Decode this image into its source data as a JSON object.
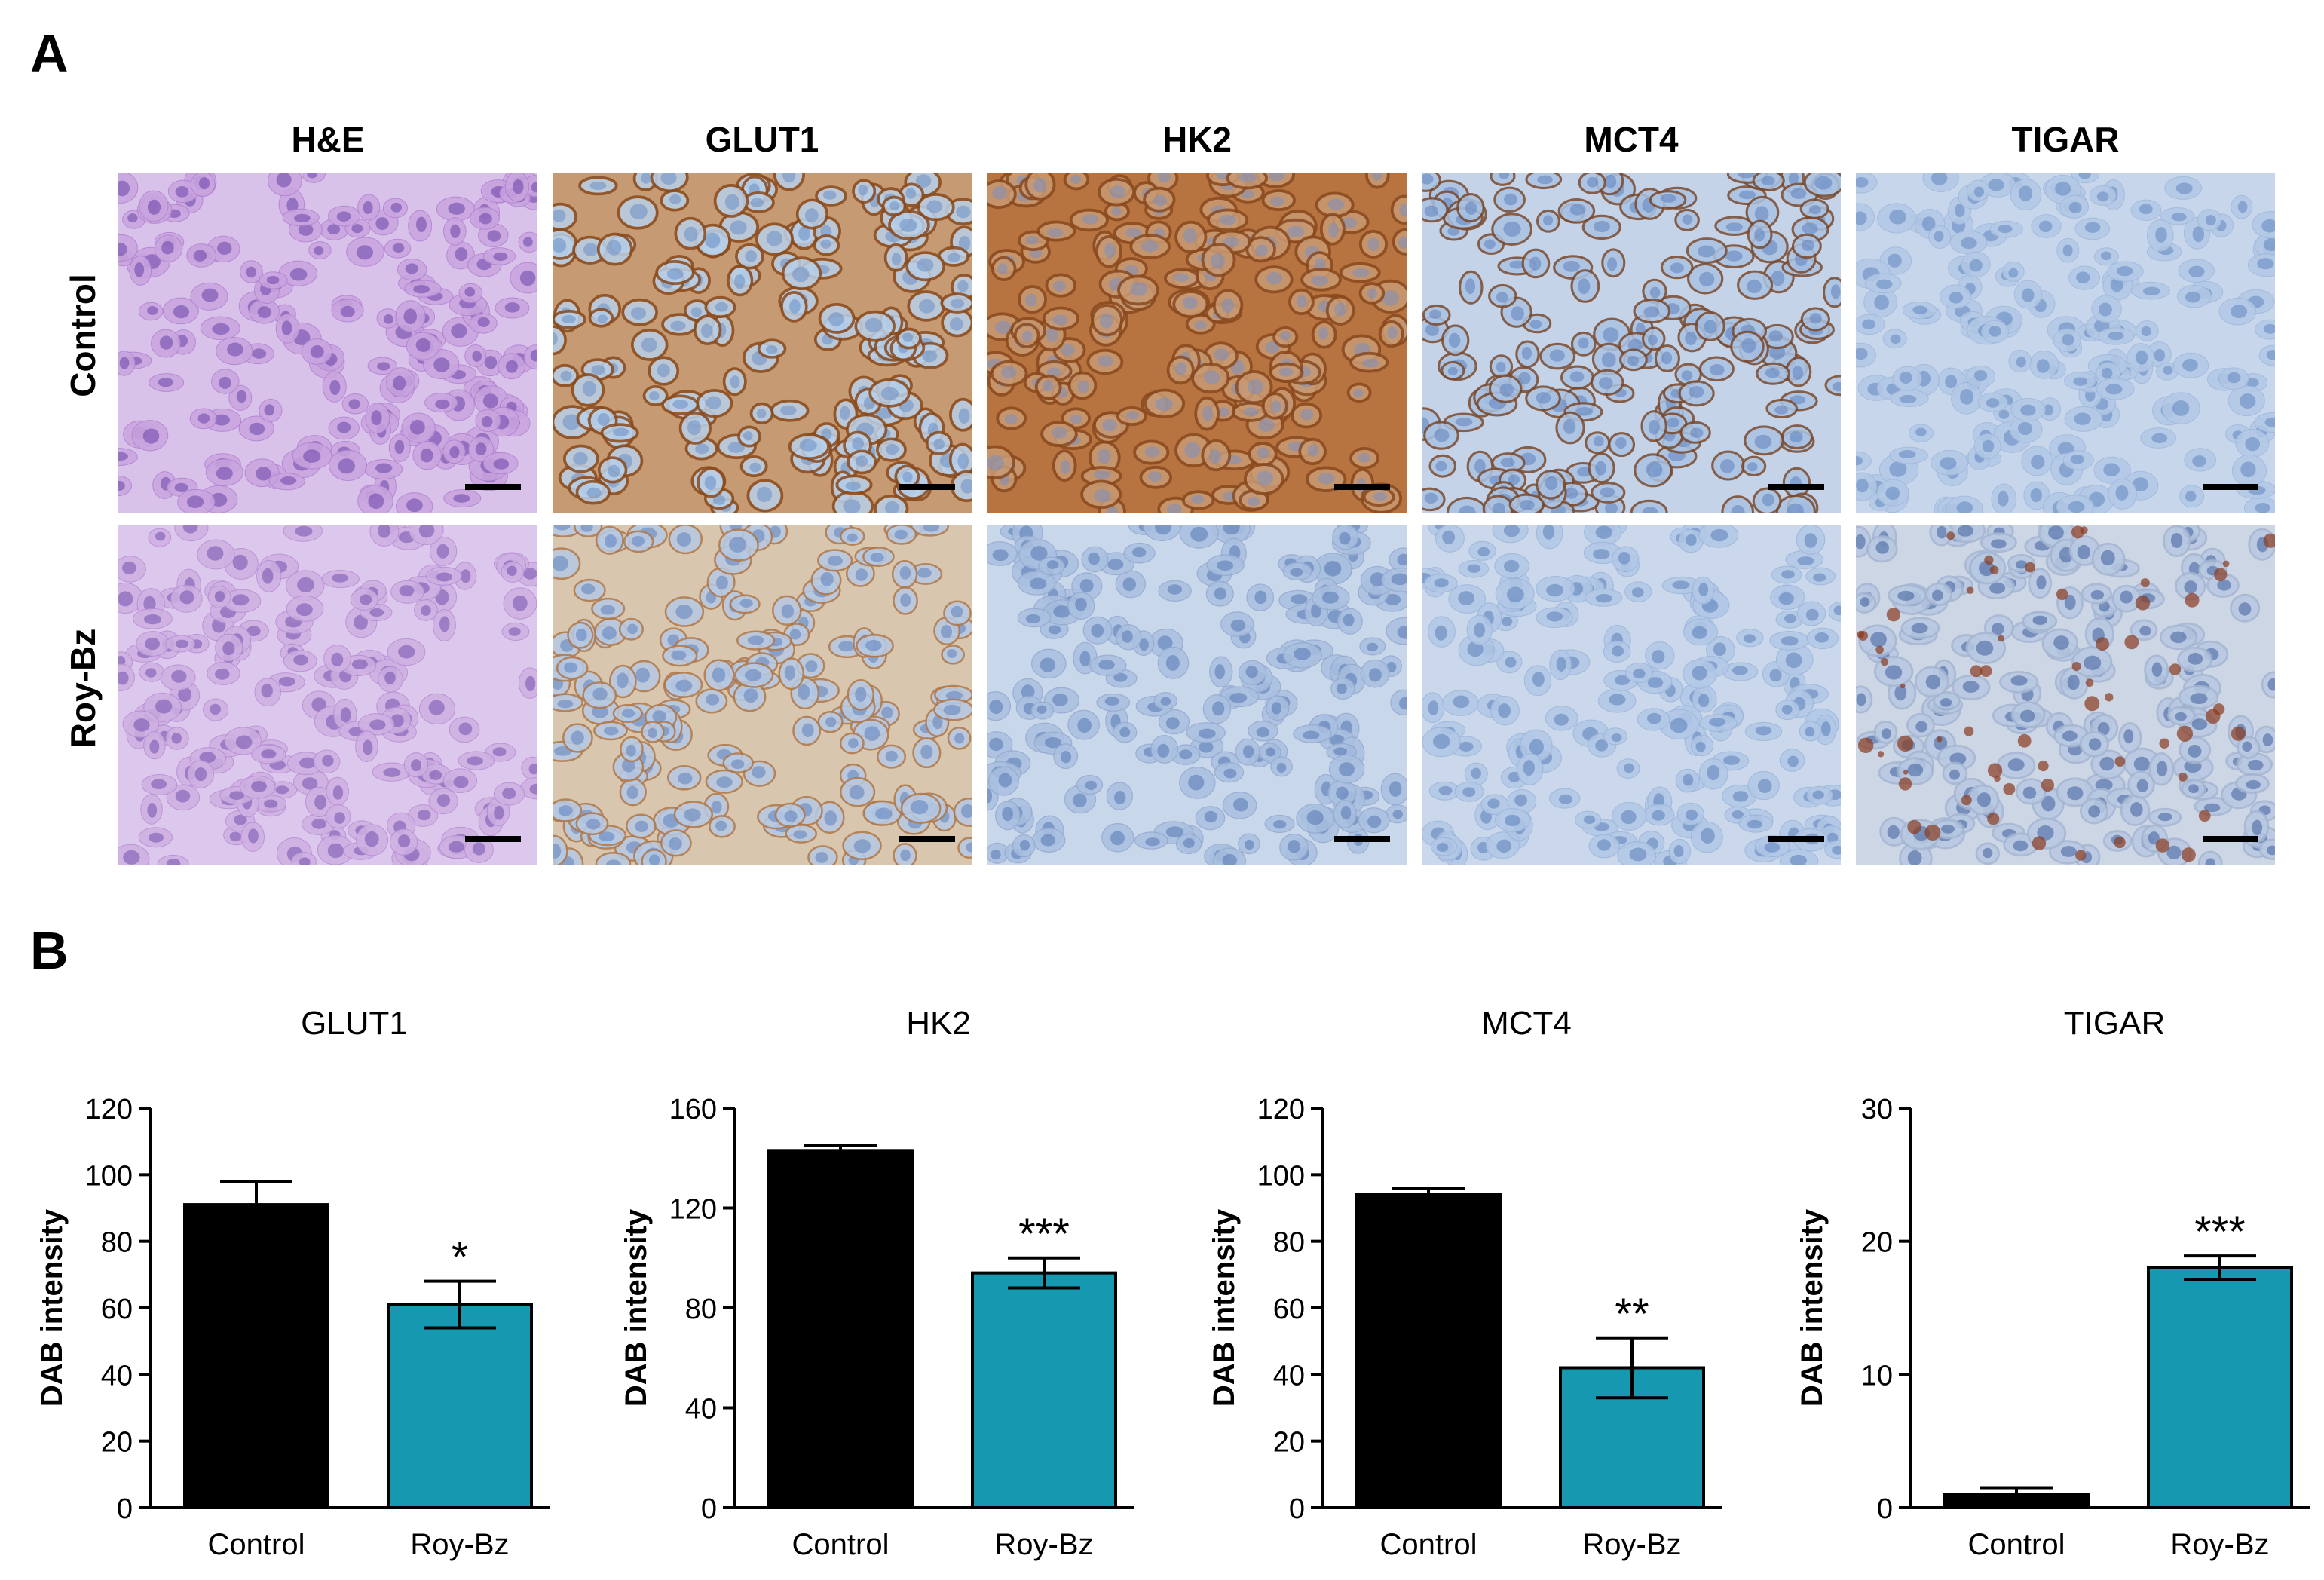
{
  "panels": {
    "a": "A",
    "b": "B"
  },
  "histology": {
    "columns": [
      "H&E",
      "GLUT1",
      "HK2",
      "MCT4",
      "TIGAR"
    ],
    "rows": [
      "Control",
      "Roy-Bz"
    ],
    "images": [
      [
        "he-control",
        "glut1-control",
        "hk2-control",
        "mct4-control",
        "tigar-control"
      ],
      [
        "he-roybz",
        "glut1-roybz",
        "hk2-roybz",
        "mct4-roybz",
        "tigar-roybz"
      ]
    ]
  },
  "colors": {
    "control_bar": "#000000",
    "roybz_bar": "#1598b0",
    "he_stain": "#b48ad2",
    "dab_strong": "#a5622f",
    "hematoxylin": "#8fb0d6"
  },
  "chart_data": [
    {
      "type": "bar",
      "title": "GLUT1",
      "ylabel": "DAB intensity",
      "xlabel": "",
      "categories": [
        "Control",
        "Roy-Bz"
      ],
      "values": [
        91,
        61
      ],
      "errors": [
        7,
        7
      ],
      "significance": [
        "",
        "*"
      ],
      "ylim": [
        0,
        120
      ],
      "yticks": [
        0,
        20,
        40,
        60,
        80,
        100,
        120
      ]
    },
    {
      "type": "bar",
      "title": "HK2",
      "ylabel": "DAB intensity",
      "xlabel": "",
      "categories": [
        "Control",
        "Roy-Bz"
      ],
      "values": [
        143,
        94
      ],
      "errors": [
        2,
        6
      ],
      "significance": [
        "",
        "***"
      ],
      "ylim": [
        0,
        160
      ],
      "yticks": [
        0,
        40,
        80,
        120,
        160
      ]
    },
    {
      "type": "bar",
      "title": "MCT4",
      "ylabel": "DAB intensity",
      "xlabel": "",
      "categories": [
        "Control",
        "Roy-Bz"
      ],
      "values": [
        94,
        42
      ],
      "errors": [
        2,
        9
      ],
      "significance": [
        "",
        "**"
      ],
      "ylim": [
        0,
        120
      ],
      "yticks": [
        0,
        20,
        40,
        60,
        80,
        100,
        120
      ]
    },
    {
      "type": "bar",
      "title": "TIGAR",
      "ylabel": "DAB intensity",
      "xlabel": "",
      "categories": [
        "Control",
        "Roy-Bz"
      ],
      "values": [
        1,
        18
      ],
      "errors": [
        0.5,
        0.9
      ],
      "significance": [
        "",
        "***"
      ],
      "ylim": [
        0,
        30
      ],
      "yticks": [
        0,
        10,
        20,
        30
      ]
    }
  ]
}
